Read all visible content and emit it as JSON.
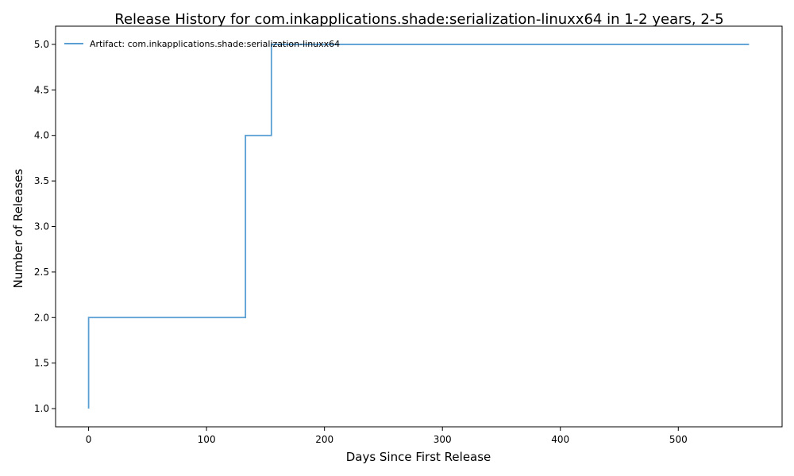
{
  "chart_data": {
    "type": "line",
    "title": "Release History for com.inkapplications.shade:serialization-linuxx64 in 1-2 years, 2-5",
    "xlabel": "Days Since First Release",
    "ylabel": "Number of Releases",
    "xlim": [
      -28,
      588
    ],
    "ylim": [
      0.8,
      5.2
    ],
    "xticks": [
      0,
      100,
      200,
      300,
      400,
      500
    ],
    "xtick_labels": [
      "0",
      "100",
      "200",
      "300",
      "400",
      "500"
    ],
    "yticks": [
      1.0,
      1.5,
      2.0,
      2.5,
      3.0,
      3.5,
      4.0,
      4.5,
      5.0
    ],
    "ytick_labels": [
      "1.0",
      "1.5",
      "2.0",
      "2.5",
      "3.0",
      "3.5",
      "4.0",
      "4.5",
      "5.0"
    ],
    "grid": false,
    "legend_position": "top-left",
    "step": "post",
    "series": [
      {
        "name": "Artifact: com.inkapplications.shade:serialization-linuxx64",
        "color": "#5a9fd4",
        "x": [
          0,
          0,
          133,
          155,
          560
        ],
        "y": [
          1,
          2,
          4,
          5,
          5
        ]
      }
    ]
  }
}
